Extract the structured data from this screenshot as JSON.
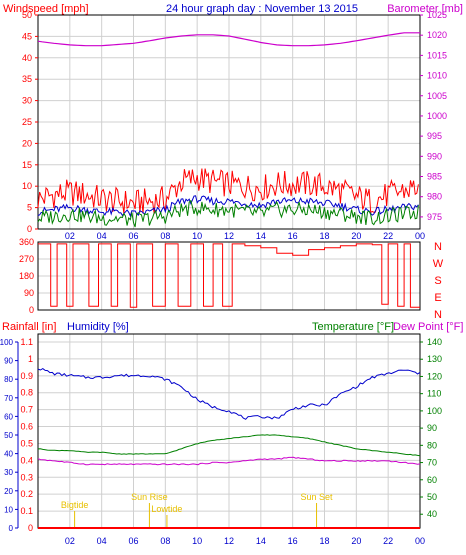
{
  "header": {
    "left": "Windspeed [mph]",
    "center": "24 hour graph day : November 13 2015",
    "right": "Barometer [mb]"
  },
  "colors": {
    "red": "#ff0000",
    "magenta": "#cc00cc",
    "blue": "#0000cc",
    "green": "#008000",
    "axisBlue": "#0000cc",
    "yellow": "#e8c000",
    "grid": "#d0d0d0"
  },
  "chart_data": [
    {
      "type": "line",
      "id": "wind-baro",
      "left_label": "Windspeed [mph]",
      "right_label": "Barometer [mb]",
      "x_ticks": [
        "02",
        "04",
        "06",
        "08",
        "10",
        "12",
        "14",
        "16",
        "18",
        "20",
        "22",
        "00"
      ],
      "x_range_hours": [
        0,
        24
      ],
      "left_ticks": [
        "0",
        "5",
        "10",
        "15",
        "20",
        "25",
        "30",
        "35",
        "40",
        "45",
        "50"
      ],
      "left_range": [
        0,
        50
      ],
      "right_ticks": [
        "975",
        "980",
        "985",
        "990",
        "995",
        "1000",
        "1005",
        "1010",
        "1015",
        "1020",
        "1025"
      ],
      "right_range": [
        972,
        1025
      ],
      "series": [
        {
          "name": "Barometer",
          "axis": "right",
          "color": "#cc00cc",
          "x": [
            0,
            1,
            2,
            3,
            4,
            5,
            6,
            7,
            8,
            9,
            10,
            11,
            12,
            13,
            14,
            15,
            16,
            17,
            18,
            19,
            20,
            21,
            22,
            23,
            24
          ],
          "values": [
            1018.5,
            1018,
            1017.6,
            1017.4,
            1017.4,
            1017.7,
            1018,
            1018.6,
            1019.3,
            1019.8,
            1020.1,
            1020.1,
            1019.8,
            1019,
            1018.2,
            1017.6,
            1017.4,
            1017.4,
            1017.6,
            1018,
            1018.6,
            1019.3,
            1020,
            1020.6,
            1020.6
          ]
        },
        {
          "name": "Wind gust",
          "axis": "left",
          "color": "#ff0000",
          "x": [
            0,
            1,
            2,
            3,
            4,
            5,
            6,
            7,
            8,
            9,
            10,
            11,
            12,
            13,
            14,
            15,
            16,
            17,
            18,
            19,
            20,
            21,
            22,
            23,
            24
          ],
          "values": [
            7,
            8,
            8.5,
            8,
            7,
            6.5,
            6,
            6.5,
            7,
            11,
            12,
            11,
            10.5,
            10,
            9.5,
            10.5,
            10.5,
            10.5,
            10,
            9,
            7.5,
            6.5,
            8,
            9,
            10
          ]
        },
        {
          "name": "Wind average",
          "axis": "left",
          "color": "#0000cc",
          "x": [
            0,
            1,
            2,
            3,
            4,
            5,
            6,
            7,
            8,
            9,
            10,
            11,
            12,
            13,
            14,
            15,
            16,
            17,
            18,
            19,
            20,
            21,
            22,
            23,
            24
          ],
          "values": [
            4,
            4.5,
            5,
            4.5,
            4,
            4,
            3.5,
            4,
            4.5,
            6.5,
            7,
            6.5,
            6.5,
            6,
            5.5,
            6.5,
            6.5,
            6.5,
            6,
            5.5,
            4.5,
            4,
            4.5,
            5,
            5.5
          ]
        },
        {
          "name": "Wind speed",
          "axis": "left",
          "color": "#008000",
          "x": [
            0,
            1,
            2,
            3,
            4,
            5,
            6,
            7,
            8,
            9,
            10,
            11,
            12,
            13,
            14,
            15,
            16,
            17,
            18,
            19,
            20,
            21,
            22,
            23,
            24
          ],
          "values": [
            2.5,
            3,
            3.5,
            3,
            2.5,
            2.5,
            2,
            2.5,
            3,
            4.5,
            5,
            4.5,
            4.5,
            4,
            3.5,
            4.5,
            4.5,
            4.5,
            4,
            3.5,
            3,
            2.5,
            3,
            3.5,
            4
          ]
        }
      ]
    },
    {
      "type": "line",
      "id": "wind-direction",
      "left_ticks": [
        "0",
        "90",
        "180",
        "270",
        "360"
      ],
      "left_range": [
        0,
        360
      ],
      "right_labels": [
        "N",
        "W",
        "S",
        "E",
        "N"
      ],
      "series": [
        {
          "name": "Wind direction",
          "color": "#ff0000",
          "x": [
            0,
            0.8,
            1.2,
            1.8,
            2.2,
            3.0,
            3.2,
            3.8,
            4.6,
            5.0,
            5.8,
            6.2,
            7.0,
            7.2,
            8.0,
            8.8,
            9.6,
            10.4,
            11.0,
            11.6,
            12.2,
            13.0,
            14.0,
            15.0,
            16.0,
            17.0,
            18.0,
            19.0,
            20.0,
            21.0,
            21.6,
            22.0,
            22.6,
            23.0,
            23.4,
            24.0
          ],
          "values": [
            350,
            20,
            350,
            20,
            350,
            350,
            20,
            350,
            20,
            350,
            15,
            350,
            350,
            20,
            350,
            20,
            350,
            20,
            350,
            20,
            350,
            340,
            330,
            300,
            290,
            320,
            330,
            340,
            350,
            345,
            30,
            350,
            20,
            350,
            15,
            15
          ]
        }
      ]
    },
    {
      "type": "line",
      "id": "rain-humidity-temp",
      "left_label_1": "Rainfall [in]",
      "left_label_2": "Humidity [%]",
      "right_label_1": "Temperature [°F]",
      "right_label_2": "Dew Point [°F]",
      "rain_ticks": [
        "0",
        "0.1",
        "0.2",
        "0.3",
        "0.4",
        "0.5",
        "0.6",
        "0.7",
        "0.8",
        "0.9",
        "1",
        "1.1"
      ],
      "rain_range": [
        0,
        1.1
      ],
      "humidity_ticks": [
        "0",
        "10",
        "20",
        "30",
        "40",
        "50",
        "60",
        "70",
        "80",
        "90",
        "100"
      ],
      "humidity_range": [
        0,
        100
      ],
      "temp_ticks": [
        "40",
        "50",
        "60",
        "70",
        "80",
        "90",
        "100",
        "110",
        "120",
        "130",
        "140"
      ],
      "temp_range": [
        32,
        140
      ],
      "x_ticks": [
        "02",
        "04",
        "06",
        "08",
        "10",
        "12",
        "14",
        "16",
        "18",
        "20",
        "22",
        "00"
      ],
      "annotations": [
        {
          "text": "Bigtide",
          "hour": 2.3
        },
        {
          "text": "Sun Rise",
          "hour": 7.0
        },
        {
          "text": "Lowtide",
          "hour": 8.1
        },
        {
          "text": "Sun Set",
          "hour": 17.5
        }
      ],
      "series": [
        {
          "name": "Humidity",
          "axis": "humidity",
          "color": "#0000cc",
          "x": [
            0,
            1,
            2,
            3,
            4,
            5,
            6,
            7,
            8,
            9,
            10,
            11,
            12,
            13,
            14,
            15,
            16,
            17,
            18,
            19,
            20,
            21,
            22,
            23,
            24
          ],
          "values": [
            86,
            83,
            82,
            81,
            81,
            82,
            82,
            82,
            80,
            76,
            69,
            65,
            63,
            59,
            60,
            59,
            64,
            66,
            66,
            72,
            76,
            81,
            83,
            85,
            83
          ]
        },
        {
          "name": "Temperature",
          "axis": "temp",
          "color": "#008000",
          "x": [
            0,
            1,
            2,
            3,
            4,
            5,
            6,
            7,
            8,
            9,
            10,
            11,
            12,
            13,
            14,
            15,
            16,
            17,
            18,
            19,
            20,
            21,
            22,
            23,
            24
          ],
          "values": [
            78,
            77,
            77,
            76,
            76,
            75,
            75,
            75,
            75,
            78,
            81,
            83,
            84,
            85,
            86,
            86,
            85,
            84,
            82,
            80,
            78,
            77,
            76,
            75,
            74
          ]
        },
        {
          "name": "Dew Point",
          "axis": "temp",
          "color": "#cc00cc",
          "x": [
            0,
            1,
            2,
            3,
            4,
            5,
            6,
            7,
            8,
            9,
            10,
            11,
            12,
            13,
            14,
            15,
            16,
            17,
            18,
            19,
            20,
            21,
            22,
            23,
            24
          ],
          "values": [
            72,
            71,
            70,
            69,
            69,
            69,
            69,
            69,
            69,
            69,
            69,
            70,
            70,
            71,
            72,
            72,
            73,
            72,
            71,
            71,
            71,
            71,
            71,
            70,
            69
          ]
        },
        {
          "name": "Rainfall",
          "axis": "rain",
          "color": "#ff0000",
          "x": [
            0,
            24
          ],
          "values": [
            0,
            0
          ]
        }
      ]
    }
  ]
}
